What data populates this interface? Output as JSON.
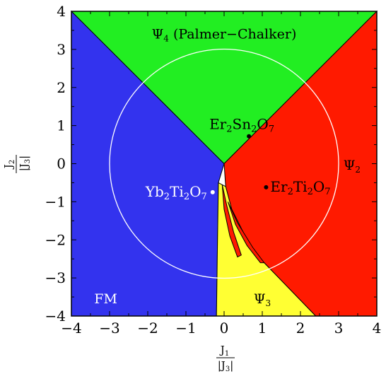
{
  "chart_data": {
    "type": "phase-diagram",
    "xlim": [
      -4,
      4
    ],
    "ylim": [
      -4,
      4
    ],
    "x_ticks": [
      "−4",
      "−3",
      "−2",
      "−1",
      "0",
      "1",
      "2",
      "3",
      "4"
    ],
    "y_ticks": [
      "4",
      "3",
      "2",
      "1",
      "0",
      "−1",
      "−2",
      "−3",
      "−4"
    ],
    "x_tick_values": [
      -4,
      -3,
      -2,
      -1,
      0,
      1,
      2,
      3,
      4
    ],
    "y_tick_values": [
      4,
      3,
      2,
      1,
      0,
      -1,
      -2,
      -3,
      -4
    ],
    "xlabel": {
      "numerator": "J",
      "numerator_sub": "1",
      "denominator": "|J",
      "denominator_sub": "3",
      "denominator_end": "|"
    },
    "ylabel": {
      "numerator": "J",
      "numerator_sub": "2",
      "denominator": "|J",
      "denominator_sub": "3",
      "denominator_end": "|"
    },
    "circle_radius": 3,
    "regions": [
      {
        "id": "fm",
        "label": "FM",
        "color": "#3333ee",
        "label_color": "#ffffff",
        "polygon": [
          [
            -4,
            4
          ],
          [
            0,
            0
          ],
          [
            -0.15,
            -0.5
          ],
          [
            -0.18,
            -2.5
          ],
          [
            -0.2,
            -4
          ],
          [
            -4,
            -4
          ]
        ]
      },
      {
        "id": "psi4",
        "label": "Ψ",
        "sub": "4",
        "suffix": " (Palmer−Chalker)",
        "color": "#22ee22",
        "label_color": "#000000",
        "polygon": [
          [
            -4,
            4
          ],
          [
            4,
            4
          ],
          [
            0,
            0
          ]
        ]
      },
      {
        "id": "psi2",
        "label": "Ψ",
        "sub": "2",
        "color": "#ff1a00",
        "label_color": "#000000",
        "polygon": [
          [
            0,
            0
          ],
          [
            4,
            4
          ],
          [
            4,
            -4
          ],
          [
            2.4,
            -4
          ],
          [
            1.0,
            -2.55
          ],
          [
            0.6,
            -2.0
          ],
          [
            0.2,
            -1.2
          ],
          [
            0.04,
            -0.6
          ]
        ]
      },
      {
        "id": "psi3",
        "label": "Ψ",
        "sub": "3",
        "color": "#ffff33",
        "label_color": "#000000",
        "polygon": [
          [
            -0.15,
            -0.5
          ],
          [
            0.04,
            -0.6
          ],
          [
            0.2,
            -1.2
          ],
          [
            0.6,
            -2.0
          ],
          [
            1.0,
            -2.55
          ],
          [
            2.4,
            -4
          ],
          [
            -0.2,
            -4
          ],
          [
            -0.18,
            -2.5
          ]
        ]
      }
    ],
    "slivers": [
      {
        "color": "#ff1a00",
        "polygon": [
          [
            -0.05,
            -0.55
          ],
          [
            0.0,
            -1.2
          ],
          [
            0.15,
            -1.9
          ],
          [
            0.35,
            -2.45
          ],
          [
            0.45,
            -2.4
          ],
          [
            0.25,
            -1.8
          ],
          [
            0.07,
            -1.1
          ]
        ]
      },
      {
        "color": "#ff1a00",
        "polygon": [
          [
            0.1,
            -1.0
          ],
          [
            0.35,
            -1.55
          ],
          [
            0.75,
            -2.2
          ],
          [
            1.05,
            -2.6
          ],
          [
            0.95,
            -2.6
          ],
          [
            0.6,
            -2.15
          ],
          [
            0.3,
            -1.6
          ]
        ]
      }
    ],
    "points": [
      {
        "name": "Er",
        "sub1": "2",
        "mid": "Sn",
        "sub2": "2",
        "end": "O",
        "sub3": "7",
        "x": 0.65,
        "y": 0.72,
        "dot_color": "#000000",
        "label_color": "#000000"
      },
      {
        "name": "Er",
        "sub1": "2",
        "mid": "Ti",
        "sub2": "2",
        "end": "O",
        "sub3": "7",
        "x": 1.1,
        "y": -0.62,
        "dot_color": "#000000",
        "label_color": "#000000"
      },
      {
        "name": "Yb",
        "sub1": "2",
        "mid": "Ti",
        "sub2": "2",
        "end": "O",
        "sub3": "7",
        "x": -0.3,
        "y": -0.75,
        "dot_color": "#ffffff",
        "label_color": "#ffffff"
      }
    ]
  }
}
